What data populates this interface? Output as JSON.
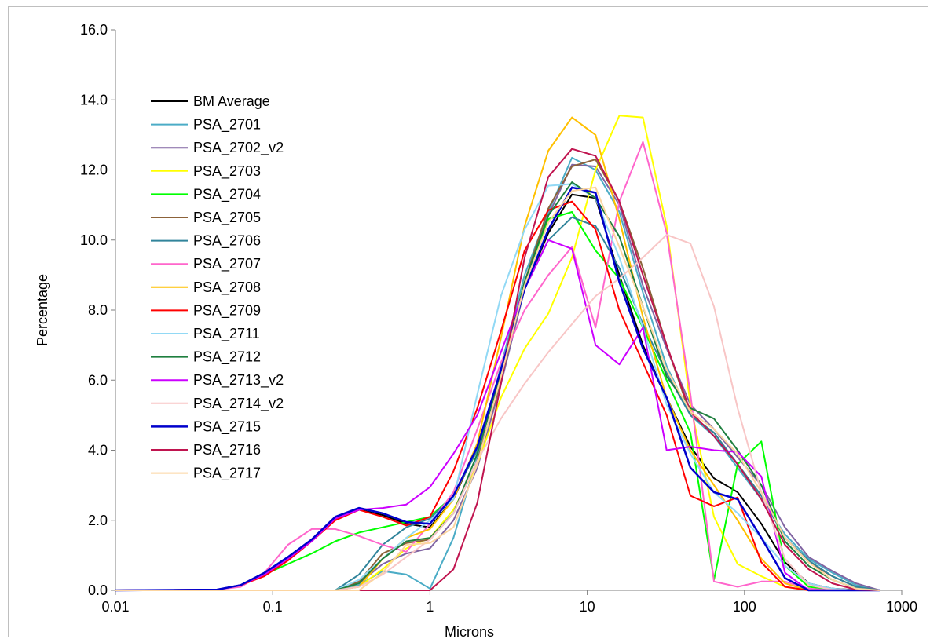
{
  "chart_data": {
    "type": "line",
    "xlabel": "Microns",
    "ylabel": "Percentage",
    "xscale": "log",
    "xlim": [
      0.01,
      1000
    ],
    "ylim": [
      0,
      16
    ],
    "xticks": [
      "0.01",
      "0.1",
      "1",
      "10",
      "100",
      "1000"
    ],
    "yticks": [
      "0.0",
      "2.0",
      "4.0",
      "6.0",
      "8.0",
      "10.0",
      "12.0",
      "14.0",
      "16.0"
    ],
    "legend_position": "left",
    "grid": false,
    "x": [
      0.01,
      0.0442,
      0.0626,
      0.0885,
      0.125,
      0.177,
      0.25,
      0.354,
      0.5,
      0.707,
      1,
      1.41,
      2,
      2.83,
      4,
      5.66,
      8,
      11.3,
      16,
      22.6,
      32,
      45.3,
      64,
      90.5,
      128,
      181,
      256,
      362,
      512,
      724
    ],
    "series": [
      {
        "name": "BM Average",
        "color": "#000000",
        "values": [
          0,
          0.02,
          0.15,
          0.5,
          0.95,
          1.45,
          2.05,
          2.3,
          2.15,
          1.9,
          1.8,
          2.6,
          4.1,
          6.2,
          8.6,
          10.2,
          11.3,
          11.2,
          9.0,
          7.0,
          5.5,
          4.1,
          3.2,
          2.8,
          1.9,
          0.8,
          0.2,
          0.05,
          0.01,
          0
        ],
        "width": 2
      },
      {
        "name": "PSA_2701",
        "color": "#4bacc6",
        "values": [
          0,
          0,
          0,
          0,
          0,
          0,
          0,
          0.15,
          0.55,
          0.45,
          0.05,
          1.5,
          3.8,
          6.4,
          9.0,
          10.8,
          12.35,
          12.0,
          10.8,
          8.5,
          6.4,
          5.0,
          4.4,
          3.5,
          2.6,
          1.6,
          0.9,
          0.5,
          0.15,
          0
        ],
        "width": 2
      },
      {
        "name": "PSA_2702_v2",
        "color": "#8064a2",
        "values": [
          0,
          0,
          0,
          0,
          0,
          0,
          0,
          0.2,
          0.75,
          1.05,
          1.2,
          2.0,
          3.5,
          5.9,
          8.6,
          10.7,
          12.15,
          12.1,
          11.0,
          8.7,
          6.9,
          5.3,
          4.6,
          3.8,
          3.0,
          1.8,
          0.95,
          0.55,
          0.2,
          0
        ],
        "width": 2
      },
      {
        "name": "PSA_2703",
        "color": "#ffff00",
        "values": [
          0,
          0,
          0,
          0,
          0,
          0,
          0,
          0.1,
          0.6,
          1.2,
          1.5,
          2.3,
          3.6,
          5.5,
          6.9,
          7.9,
          9.5,
          12.0,
          13.55,
          13.5,
          10.4,
          5.3,
          2.1,
          0.75,
          0.4,
          0.1,
          0,
          0,
          0,
          0
        ],
        "width": 2
      },
      {
        "name": "PSA_2704",
        "color": "#00ff00",
        "values": [
          0,
          0.02,
          0.15,
          0.45,
          0.75,
          1.05,
          1.4,
          1.65,
          1.8,
          1.95,
          2.1,
          2.7,
          4.0,
          6.2,
          8.8,
          10.6,
          10.8,
          9.7,
          8.9,
          7.5,
          6.0,
          4.5,
          0.3,
          3.6,
          4.25,
          0.7,
          0.1,
          0.02,
          0,
          0
        ],
        "width": 2
      },
      {
        "name": "PSA_2705",
        "color": "#8c6239",
        "values": [
          0,
          0,
          0,
          0,
          0,
          0,
          0,
          0.25,
          1.05,
          1.35,
          1.45,
          2.2,
          3.7,
          6.0,
          8.8,
          10.9,
          12.1,
          12.3,
          11.1,
          9.2,
          7.0,
          5.0,
          4.5,
          3.6,
          2.7,
          1.5,
          0.8,
          0.4,
          0.1,
          0
        ],
        "width": 2
      },
      {
        "name": "PSA_2706",
        "color": "#31849b",
        "values": [
          0,
          0,
          0,
          0,
          0,
          0,
          0,
          0.45,
          1.3,
          1.8,
          2.05,
          2.7,
          4.0,
          6.2,
          8.6,
          10.0,
          10.65,
          10.4,
          9.2,
          7.6,
          6.2,
          5.0,
          4.5,
          3.6,
          2.7,
          1.5,
          0.85,
          0.4,
          0.1,
          0
        ],
        "width": 2
      },
      {
        "name": "PSA_2707",
        "color": "#ff66cc",
        "values": [
          0,
          0.02,
          0.1,
          0.5,
          1.3,
          1.75,
          1.75,
          1.55,
          1.3,
          1.1,
          1.9,
          2.8,
          4.6,
          6.5,
          8.0,
          9.0,
          9.8,
          7.5,
          11.1,
          12.8,
          10.2,
          5.6,
          0.25,
          0.1,
          0.25,
          0.25,
          0.05,
          0,
          0,
          0
        ],
        "width": 2
      },
      {
        "name": "PSA_2708",
        "color": "#ffc000",
        "values": [
          0,
          0,
          0,
          0,
          0,
          0,
          0,
          0.1,
          0.9,
          1.5,
          1.75,
          2.6,
          4.2,
          7.2,
          10.4,
          12.55,
          13.5,
          13.0,
          10.6,
          7.8,
          5.5,
          4.0,
          3.0,
          2.0,
          0.9,
          0.2,
          0,
          0,
          0,
          0
        ],
        "width": 2
      },
      {
        "name": "PSA_2709",
        "color": "#ff0000",
        "values": [
          0,
          0.02,
          0.15,
          0.4,
          0.85,
          1.4,
          2.0,
          2.3,
          2.1,
          1.85,
          2.1,
          3.4,
          5.2,
          7.4,
          9.7,
          10.85,
          11.1,
          10.3,
          8.0,
          6.5,
          5.0,
          2.7,
          2.4,
          2.65,
          0.8,
          0.1,
          0,
          0,
          0,
          0
        ],
        "width": 2
      },
      {
        "name": "PSA_2711",
        "color": "#92d9f5",
        "values": [
          0,
          0,
          0,
          0,
          0,
          0,
          0,
          0.3,
          0.9,
          1.5,
          2.0,
          2.6,
          5.6,
          8.4,
          10.3,
          11.55,
          11.6,
          11.2,
          9.5,
          7.5,
          5.3,
          3.9,
          2.8,
          2.2,
          1.5,
          0.7,
          0.2,
          0.05,
          0,
          0
        ],
        "width": 2
      },
      {
        "name": "PSA_2712",
        "color": "#1f7f3f",
        "values": [
          0,
          0,
          0,
          0,
          0,
          0,
          0,
          0.2,
          0.9,
          1.4,
          1.5,
          2.2,
          3.9,
          6.2,
          8.8,
          10.7,
          11.65,
          11.2,
          10.1,
          8.1,
          6.1,
          5.2,
          4.9,
          4.0,
          3.0,
          1.4,
          0.7,
          0.3,
          0.05,
          0
        ],
        "width": 2
      },
      {
        "name": "PSA_2713_v2",
        "color": "#cc00ff",
        "values": [
          0,
          0.02,
          0.15,
          0.45,
          0.9,
          1.4,
          2.05,
          2.3,
          2.35,
          2.45,
          2.95,
          3.9,
          5.0,
          6.8,
          8.6,
          10.0,
          9.75,
          7.0,
          6.45,
          7.5,
          4.0,
          4.1,
          4.0,
          3.95,
          3.25,
          0.5,
          0,
          0,
          0,
          0
        ],
        "width": 2
      },
      {
        "name": "PSA_2714_v2",
        "color": "#f8c6c6",
        "values": [
          0,
          0,
          0,
          0,
          0,
          0,
          0,
          0.1,
          0.45,
          0.95,
          1.45,
          2.2,
          3.7,
          4.9,
          5.9,
          6.8,
          7.6,
          8.4,
          8.9,
          9.5,
          10.15,
          9.9,
          8.1,
          5.2,
          2.8,
          0.9,
          0.15,
          0.02,
          0,
          0
        ],
        "width": 2
      },
      {
        "name": "PSA_2715",
        "color": "#0000cc",
        "values": [
          0,
          0.02,
          0.15,
          0.5,
          0.95,
          1.45,
          2.1,
          2.35,
          2.2,
          1.95,
          1.9,
          2.7,
          4.1,
          6.3,
          8.6,
          10.3,
          11.5,
          11.35,
          8.8,
          6.9,
          5.5,
          3.5,
          2.8,
          2.6,
          1.5,
          0.35,
          0,
          0,
          0,
          0
        ],
        "width": 2.5
      },
      {
        "name": "PSA_2716",
        "color": "#c0144f",
        "values": [
          0,
          0,
          0,
          0,
          0,
          0,
          0,
          0,
          0,
          0,
          0,
          0.6,
          2.5,
          5.9,
          9.5,
          11.8,
          12.6,
          12.4,
          11.1,
          9.0,
          7.0,
          5.1,
          4.4,
          3.6,
          2.6,
          1.3,
          0.6,
          0.2,
          0.02,
          0
        ],
        "width": 2
      },
      {
        "name": "PSA_2717",
        "color": "#fcd5a0",
        "values": [
          0,
          0,
          0,
          0,
          0,
          0,
          0,
          0,
          0.5,
          1.3,
          1.35,
          1.8,
          3.6,
          6.1,
          8.7,
          10.5,
          11.4,
          11.5,
          9.8,
          8.1,
          6.3,
          5.1,
          4.6,
          3.9,
          2.8,
          1.5,
          0.8,
          0.3,
          0.05,
          0
        ],
        "width": 2
      }
    ]
  }
}
